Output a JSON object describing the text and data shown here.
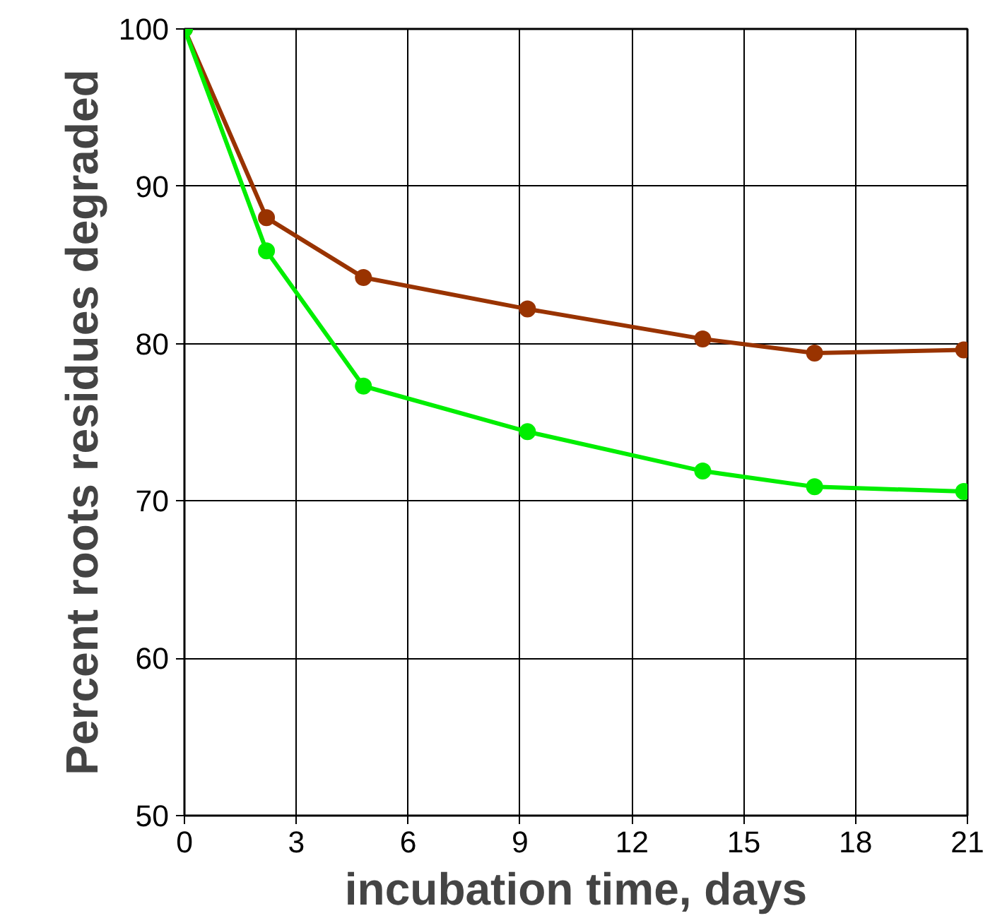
{
  "chart_data": {
    "type": "line",
    "xlabel": "incubation time, days",
    "ylabel": "Percent roots residues degraded",
    "xlim": [
      0,
      21
    ],
    "ylim": [
      50,
      100
    ],
    "xticks": [
      0,
      3,
      6,
      9,
      12,
      15,
      18,
      21
    ],
    "yticks": [
      50,
      60,
      70,
      80,
      90,
      100
    ],
    "grid": true,
    "marker": "circle",
    "line_style": "solid",
    "series": [
      {
        "color": "#993300",
        "x": [
          0,
          2.2,
          4.8,
          9.2,
          13.9,
          16.9,
          20.9
        ],
        "values": [
          100,
          88,
          84.2,
          82.2,
          80.3,
          79.4,
          79.6
        ]
      },
      {
        "color": "#00ee00",
        "x": [
          0,
          2.2,
          4.8,
          9.2,
          13.9,
          16.9,
          20.9
        ],
        "values": [
          100,
          85.9,
          77.3,
          74.4,
          71.9,
          70.9,
          70.6
        ]
      }
    ]
  }
}
